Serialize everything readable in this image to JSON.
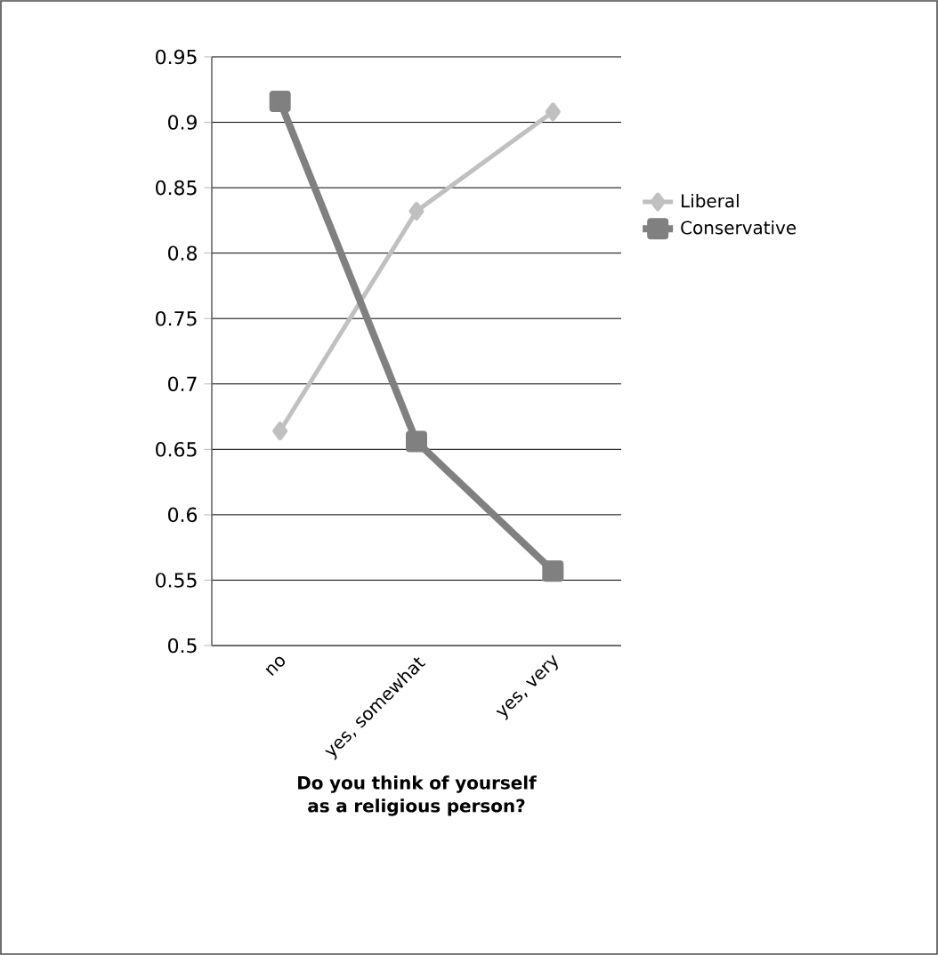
{
  "chart_data": {
    "type": "line",
    "xlabel": "Do you think of yourself as a religious person?",
    "categories": [
      "no",
      "yes, somewhat",
      "yes, very"
    ],
    "series": [
      {
        "name": "Liberal",
        "color": "#c0c0c0",
        "marker": "diamond",
        "values": [
          0.664,
          0.832,
          0.908
        ]
      },
      {
        "name": "Conservative",
        "color": "#808080",
        "marker": "square",
        "values": [
          0.916,
          0.656,
          0.557
        ]
      }
    ],
    "ylim": [
      0.5,
      0.95
    ],
    "yticks": [
      0.5,
      0.55,
      0.6,
      0.65,
      0.7,
      0.75,
      0.8,
      0.85,
      0.9,
      0.95
    ],
    "grid": "y",
    "legend": "right",
    "line_style": "solid"
  }
}
